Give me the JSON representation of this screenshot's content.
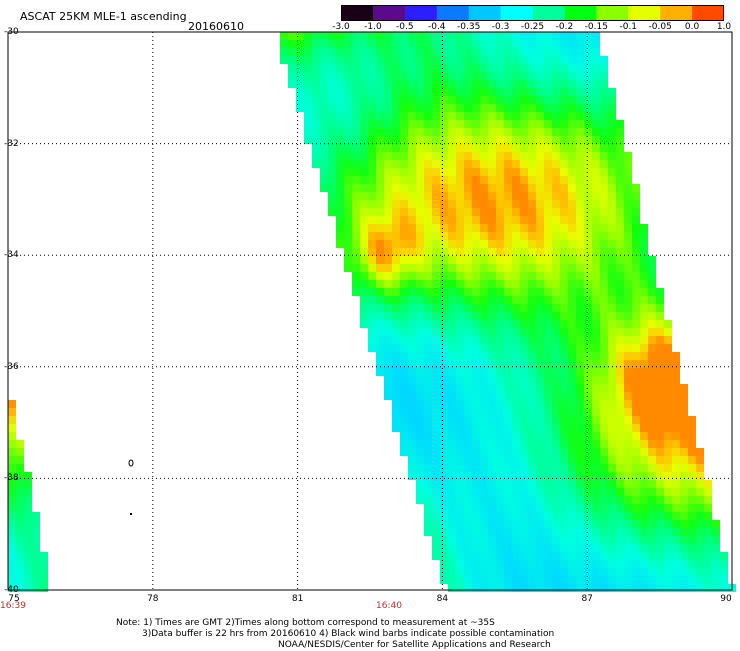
{
  "header": {
    "title": "ASCAT 25KM MLE-1 ascending",
    "date": "20160610"
  },
  "colorbar": {
    "labels": [
      "-3.0",
      "-1.0",
      "-0.5",
      "-0.4",
      "-0.35",
      "-0.3",
      "-0.25",
      "-0.2",
      "-0.15",
      "-0.1",
      "-0.05",
      "0.0",
      "1.0"
    ],
    "colors": [
      "#1a0016",
      "#5b0a8c",
      "#2b1fff",
      "#0a7bff",
      "#00c8ff",
      "#00ffff",
      "#00ff9c",
      "#00ff10",
      "#8cff00",
      "#e6ff00",
      "#ffb000",
      "#ff4a00"
    ]
  },
  "axes": {
    "y_labels": [
      "-30",
      "-32",
      "-34",
      "-36",
      "-38",
      "-40"
    ],
    "x_labels": [
      "75",
      "78",
      "81",
      "84",
      "87",
      "90"
    ],
    "lat_range": [
      -40,
      -30
    ],
    "lon_range": [
      75,
      90
    ]
  },
  "times": [
    "16:39",
    "16:40"
  ],
  "notes": [
    "Note: 1) Times are GMT 2)Times along bottom correspond to measurement at ~35S",
    "3)Data buffer is 22 hrs from 20160610 4) Black wind barbs indicate possible contamination",
    "NOAA/NESDIS/Center for Satellite Applications and Research"
  ]
}
